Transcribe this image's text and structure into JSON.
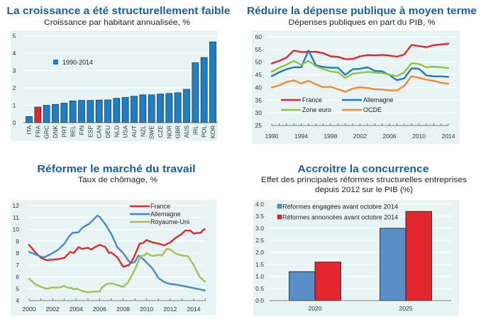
{
  "colors": {
    "title": "#1b5e9b",
    "plot_background": "#e8f3f4",
    "bar_blue": "#1e7fc4",
    "bar_highlight": "#e1262d",
    "france": "#e1262d",
    "germany": "#1f7bc0",
    "euro_area": "#8cc63f",
    "oecd": "#f7882f",
    "uk": "#9dc256",
    "germany_unemployment": "#4a86c8",
    "engaged": "#5b8fc7",
    "announced": "#e1262d"
  },
  "chart_data": [
    {
      "id": "growth",
      "type": "bar",
      "title": "La croissance a été structurellement faible",
      "subtitle": "Croissance par habitant annualisée, %",
      "xlabel": "",
      "ylabel": "",
      "ylim": [
        0,
        5
      ],
      "yticks": [
        "0",
        "1",
        "2",
        "3",
        "4",
        "5"
      ],
      "grid": true,
      "legend": {
        "position": "top-left",
        "entries": [
          "1990-2014"
        ]
      },
      "categories": [
        "ITA",
        "FRA",
        "GRC",
        "DNK",
        "PRT",
        "BEL",
        "FIN",
        "ESP",
        "CAN",
        "DEU",
        "NLD",
        "USA",
        "AUT",
        "NZL",
        "SWE",
        "CZE",
        "NOR",
        "GBR",
        "AUS",
        "IRL",
        "POL",
        "KOR"
      ],
      "values": [
        0.35,
        0.9,
        1.0,
        1.05,
        1.12,
        1.25,
        1.28,
        1.28,
        1.3,
        1.31,
        1.4,
        1.45,
        1.52,
        1.6,
        1.6,
        1.65,
        1.68,
        1.72,
        1.92,
        3.45,
        3.75,
        4.65
      ],
      "highlight": "FRA"
    },
    {
      "id": "spending",
      "type": "line",
      "title": "Réduire la dépense publique à moyen terme",
      "subtitle": "Dépenses publiques en part du PIB, %",
      "xlabel": "",
      "ylabel": "",
      "ylim": [
        25,
        60
      ],
      "yticks": [
        "25",
        "30",
        "35",
        "40",
        "45",
        "50",
        "55",
        "60"
      ],
      "xlim": [
        1990,
        2014
      ],
      "xticks": [
        "1990",
        "1994",
        "1998",
        "2002",
        "2006",
        "2010",
        "2014"
      ],
      "grid": true,
      "legend": {
        "position": "bottom-left"
      },
      "x": [
        1990,
        1991,
        1992,
        1993,
        1994,
        1995,
        1996,
        1997,
        1998,
        1999,
        2000,
        2001,
        2002,
        2003,
        2004,
        2005,
        2006,
        2007,
        2008,
        2009,
        2010,
        2011,
        2012,
        2013,
        2014
      ],
      "series": [
        {
          "name": "France",
          "color_key": "france",
          "values": [
            49.5,
            50.5,
            51.8,
            54.6,
            54.0,
            54.1,
            54.1,
            53.6,
            52.3,
            52.1,
            51.2,
            51.3,
            52.3,
            52.8,
            52.7,
            52.9,
            52.6,
            52.2,
            53.0,
            56.8,
            56.4,
            55.9,
            56.7,
            57.0,
            57.3
          ]
        },
        {
          "name": "Allemagne",
          "color_key": "germany",
          "values": [
            44.5,
            46.0,
            47.2,
            48.0,
            48.0,
            54.6,
            48.8,
            48.1,
            47.8,
            47.8,
            45.0,
            47.2,
            47.4,
            48.0,
            46.6,
            46.4,
            44.9,
            42.9,
            43.6,
            47.6,
            47.4,
            44.8,
            44.4,
            44.4,
            44.2
          ]
        },
        {
          "name": "Zone euro",
          "color_key": "euro_area",
          "values": [
            46.2,
            47.8,
            49.0,
            50.5,
            49.0,
            50.5,
            48.4,
            47.3,
            46.3,
            46.0,
            43.8,
            45.4,
            45.8,
            46.2,
            45.9,
            45.7,
            45.0,
            44.5,
            46.0,
            49.6,
            49.3,
            48.0,
            48.2,
            48.0,
            47.7
          ]
        },
        {
          "name": "OCDE",
          "color_key": "oecd",
          "values": [
            40.0,
            40.8,
            42.2,
            42.8,
            41.6,
            42.6,
            41.3,
            40.1,
            40.3,
            39.3,
            38.3,
            39.6,
            40.1,
            39.8,
            39.3,
            39.2,
            38.9,
            38.9,
            40.6,
            44.5,
            43.9,
            43.1,
            42.6,
            41.9,
            41.5
          ]
        }
      ]
    },
    {
      "id": "unemployment",
      "type": "line",
      "title": "Réformer le marché du travail",
      "subtitle": "Taux de chômage, %",
      "xlabel": "",
      "ylabel": "",
      "ylim": [
        4,
        12
      ],
      "yticks": [
        "4",
        "5",
        "6",
        "7",
        "8",
        "9",
        "10",
        "11",
        "12"
      ],
      "xlim": [
        2000,
        2015
      ],
      "xticks": [
        "2000",
        "2002",
        "2004",
        "2006",
        "2008",
        "2010",
        "2012",
        "2014"
      ],
      "grid": true,
      "legend": {
        "position": "top-right"
      },
      "series": [
        {
          "name": "France",
          "color_key": "france",
          "points": [
            [
              2000,
              8.7
            ],
            [
              2000.5,
              8.1
            ],
            [
              2001,
              7.6
            ],
            [
              2001.5,
              7.4
            ],
            [
              2002,
              7.45
            ],
            [
              2002.5,
              7.5
            ],
            [
              2003,
              7.6
            ],
            [
              2003.5,
              8.1
            ],
            [
              2003.8,
              8.0
            ],
            [
              2004.2,
              8.5
            ],
            [
              2004.5,
              8.35
            ],
            [
              2005,
              8.45
            ],
            [
              2005.3,
              8.3
            ],
            [
              2005.6,
              8.5
            ],
            [
              2006,
              8.7
            ],
            [
              2006.5,
              8.5
            ],
            [
              2006.8,
              8.0
            ],
            [
              2007,
              8.05
            ],
            [
              2007.5,
              7.65
            ],
            [
              2008,
              6.85
            ],
            [
              2008.5,
              7.0
            ],
            [
              2008.9,
              7.6
            ],
            [
              2009.4,
              8.8
            ],
            [
              2009.7,
              8.85
            ],
            [
              2010,
              9.1
            ],
            [
              2010.5,
              8.9
            ],
            [
              2011,
              8.8
            ],
            [
              2011.5,
              8.65
            ],
            [
              2012,
              8.9
            ],
            [
              2012.5,
              9.3
            ],
            [
              2012.9,
              9.55
            ],
            [
              2013.3,
              9.9
            ],
            [
              2013.7,
              9.9
            ],
            [
              2014,
              9.65
            ],
            [
              2014.3,
              9.7
            ],
            [
              2014.6,
              9.7
            ],
            [
              2014.8,
              9.95
            ],
            [
              2014.95,
              10.0
            ]
          ]
        },
        {
          "name": "Allemagne",
          "color_key": "germany_unemployment",
          "points": [
            [
              2000,
              8.1
            ],
            [
              2000.5,
              7.9
            ],
            [
              2001,
              7.7
            ],
            [
              2001.3,
              7.65
            ],
            [
              2001.7,
              7.85
            ],
            [
              2002,
              8.0
            ],
            [
              2002.5,
              8.3
            ],
            [
              2003,
              8.8
            ],
            [
              2003.4,
              9.4
            ],
            [
              2003.7,
              9.7
            ],
            [
              2004.2,
              9.75
            ],
            [
              2004.5,
              10.1
            ],
            [
              2004.8,
              10.3
            ],
            [
              2005.1,
              10.45
            ],
            [
              2005.5,
              10.85
            ],
            [
              2005.8,
              11.15
            ],
            [
              2006,
              11.05
            ],
            [
              2006.5,
              10.4
            ],
            [
              2007,
              9.6
            ],
            [
              2007.5,
              8.5
            ],
            [
              2008,
              8.0
            ],
            [
              2008.5,
              7.3
            ],
            [
              2008.7,
              7.15
            ],
            [
              2009,
              7.25
            ],
            [
              2009.3,
              7.8
            ],
            [
              2009.7,
              7.5
            ],
            [
              2010,
              7.2
            ],
            [
              2010.5,
              6.7
            ],
            [
              2011,
              5.9
            ],
            [
              2011.5,
              5.55
            ],
            [
              2012,
              5.4
            ],
            [
              2012.5,
              5.35
            ],
            [
              2013,
              5.25
            ],
            [
              2013.5,
              5.15
            ],
            [
              2014,
              5.05
            ],
            [
              2014.5,
              4.95
            ],
            [
              2014.95,
              4.85
            ]
          ]
        },
        {
          "name": "Royaume-Uni",
          "color_key": "uk",
          "points": [
            [
              2000,
              5.85
            ],
            [
              2000.5,
              5.4
            ],
            [
              2001,
              5.15
            ],
            [
              2001.5,
              5.0
            ],
            [
              2002,
              5.1
            ],
            [
              2002.6,
              5.1
            ],
            [
              2003,
              5.25
            ],
            [
              2003.2,
              5.1
            ],
            [
              2003.6,
              5.05
            ],
            [
              2003.8,
              4.95
            ],
            [
              2004.1,
              5.0
            ],
            [
              2004.5,
              4.8
            ],
            [
              2005,
              4.7
            ],
            [
              2005.5,
              4.75
            ],
            [
              2006,
              4.75
            ],
            [
              2006.2,
              5.1
            ],
            [
              2006.6,
              5.4
            ],
            [
              2007.1,
              5.45
            ],
            [
              2007.5,
              5.3
            ],
            [
              2008,
              5.15
            ],
            [
              2008.4,
              5.5
            ],
            [
              2009,
              6.6
            ],
            [
              2009.5,
              7.75
            ],
            [
              2009.8,
              7.8
            ],
            [
              2010,
              8.0
            ],
            [
              2010.5,
              7.75
            ],
            [
              2011,
              7.85
            ],
            [
              2011.3,
              7.8
            ],
            [
              2011.7,
              8.35
            ],
            [
              2012,
              8.3
            ],
            [
              2012.5,
              7.95
            ],
            [
              2013,
              7.8
            ],
            [
              2013.5,
              7.75
            ],
            [
              2014,
              7.0
            ],
            [
              2014.5,
              6.0
            ],
            [
              2014.95,
              5.6
            ]
          ]
        }
      ]
    },
    {
      "id": "competition",
      "type": "bar",
      "title": "Accroitre la concurrence",
      "subtitle": "Effet des principales réformes structurelles entreprises",
      "subtitle2": "depuis 2012 sur le PIB (%)",
      "xlabel": "",
      "ylabel": "",
      "ylim": [
        0,
        4
      ],
      "yticks": [
        "0.0",
        "0.5",
        "1.0",
        "1.5",
        "2.0",
        "2.5",
        "3.0",
        "3.5",
        "4.0"
      ],
      "grid": true,
      "legend": {
        "position": "top-left"
      },
      "categories": [
        "2020",
        "2025"
      ],
      "series": [
        {
          "name": "Réformes engagées avant octobre 2014",
          "color_key": "engaged",
          "values": [
            1.2,
            3.0
          ]
        },
        {
          "name": "Réformes annoncées avant octobre 2014",
          "color_key": "announced",
          "values": [
            1.6,
            3.7
          ]
        }
      ]
    }
  ]
}
